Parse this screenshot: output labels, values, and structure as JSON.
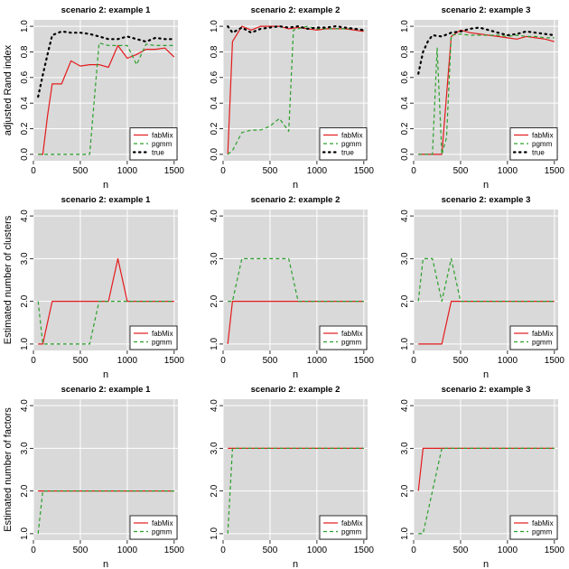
{
  "colors": {
    "fabMix": "#e41a1c",
    "pgmm": "#2ca02c",
    "true": "#000000",
    "panel_bg": "#d9d9d9",
    "grid": "#ffffff"
  },
  "chart_data": [
    {
      "id": "ari-1",
      "type": "line",
      "title": "scenario 2: example 1",
      "xlabel": "n",
      "ylabel": "adjusted Rand index",
      "xlim": [
        0,
        1540
      ],
      "ylim": [
        -0.05,
        1.05
      ],
      "xticks": [
        "0",
        "500",
        "1000",
        "1500"
      ],
      "yticks": [
        "0.0",
        "0.2",
        "0.4",
        "0.6",
        "0.8",
        "1.0"
      ],
      "legend": "bottom-right",
      "series": [
        {
          "name": "fabMix",
          "style": "solid",
          "x": [
            50,
            100,
            150,
            200,
            300,
            400,
            500,
            600,
            700,
            800,
            900,
            1000,
            1100,
            1200,
            1300,
            1400,
            1500
          ],
          "y": [
            0.0,
            0.0,
            0.3,
            0.55,
            0.55,
            0.73,
            0.69,
            0.7,
            0.7,
            0.68,
            0.85,
            0.75,
            0.78,
            0.82,
            0.82,
            0.83,
            0.76
          ]
        },
        {
          "name": "pgmm",
          "style": "dashed",
          "x": [
            50,
            100,
            200,
            300,
            400,
            500,
            600,
            700,
            800,
            900,
            1000,
            1100,
            1200,
            1300,
            1400,
            1500
          ],
          "y": [
            0.0,
            0.0,
            0.0,
            0.0,
            0.0,
            0.0,
            0.0,
            0.87,
            0.85,
            0.85,
            0.85,
            0.7,
            0.86,
            0.85,
            0.85,
            0.85
          ]
        },
        {
          "name": "true",
          "style": "dotted",
          "x": [
            50,
            100,
            150,
            200,
            300,
            400,
            500,
            600,
            700,
            800,
            900,
            1000,
            1100,
            1200,
            1300,
            1400,
            1500
          ],
          "y": [
            0.45,
            0.62,
            0.78,
            0.93,
            0.96,
            0.95,
            0.95,
            0.94,
            0.92,
            0.9,
            0.9,
            0.92,
            0.9,
            0.88,
            0.91,
            0.9,
            0.9
          ]
        }
      ]
    },
    {
      "id": "ari-2",
      "type": "line",
      "title": "scenario 2: example 2",
      "xlabel": "n",
      "ylabel": "",
      "xlim": [
        0,
        1540
      ],
      "ylim": [
        -0.05,
        1.05
      ],
      "xticks": [
        "0",
        "500",
        "1000",
        "1500"
      ],
      "yticks": [
        "0.0",
        "0.2",
        "0.4",
        "0.6",
        "0.8",
        "1.0"
      ],
      "legend": "bottom-right",
      "series": [
        {
          "name": "fabMix",
          "style": "solid",
          "x": [
            50,
            100,
            200,
            300,
            400,
            500,
            600,
            700,
            800,
            900,
            1000,
            1100,
            1200,
            1300,
            1400,
            1500
          ],
          "y": [
            0.0,
            0.88,
            1.0,
            0.97,
            1.0,
            1.0,
            1.0,
            0.98,
            0.99,
            0.98,
            0.97,
            0.98,
            0.98,
            0.98,
            0.97,
            0.96
          ]
        },
        {
          "name": "pgmm",
          "style": "dashed",
          "x": [
            50,
            100,
            200,
            300,
            400,
            500,
            600,
            700,
            750,
            800,
            900,
            1000,
            1100,
            1200,
            1300,
            1400,
            1500
          ],
          "y": [
            0.0,
            0.03,
            0.17,
            0.19,
            0.19,
            0.22,
            0.28,
            0.18,
            0.97,
            0.98,
            1.0,
            0.98,
            0.98,
            0.98,
            0.98,
            0.98,
            0.97
          ]
        },
        {
          "name": "true",
          "style": "dotted",
          "x": [
            50,
            100,
            200,
            300,
            400,
            500,
            600,
            700,
            800,
            900,
            1000,
            1100,
            1200,
            1300,
            1400,
            1500
          ],
          "y": [
            1.0,
            0.95,
            0.99,
            0.95,
            0.98,
            0.99,
            1.0,
            0.99,
            1.0,
            0.98,
            0.99,
            0.99,
            1.0,
            0.99,
            0.98,
            0.97
          ]
        }
      ]
    },
    {
      "id": "ari-3",
      "type": "line",
      "title": "scenario 2: example 3",
      "xlabel": "n",
      "ylabel": "",
      "xlim": [
        0,
        1540
      ],
      "ylim": [
        -0.05,
        1.05
      ],
      "xticks": [
        "0",
        "500",
        "1000",
        "1500"
      ],
      "yticks": [
        "0.0",
        "0.2",
        "0.4",
        "0.6",
        "0.8",
        "1.0"
      ],
      "legend": "bottom-right",
      "series": [
        {
          "name": "fabMix",
          "style": "solid",
          "x": [
            50,
            100,
            200,
            300,
            400,
            500,
            600,
            700,
            800,
            900,
            1000,
            1100,
            1200,
            1300,
            1400,
            1500
          ],
          "y": [
            0.0,
            0.0,
            0.0,
            0.0,
            0.92,
            0.97,
            0.95,
            0.94,
            0.93,
            0.92,
            0.91,
            0.9,
            0.92,
            0.91,
            0.9,
            0.88
          ]
        },
        {
          "name": "pgmm",
          "style": "dashed",
          "x": [
            50,
            100,
            200,
            250,
            300,
            350,
            400,
            500,
            600,
            700,
            800,
            900,
            1000,
            1100,
            1200,
            1300,
            1400,
            1500
          ],
          "y": [
            0.0,
            0.0,
            0.0,
            0.83,
            0.0,
            0.13,
            0.93,
            0.94,
            0.93,
            0.93,
            0.93,
            0.93,
            0.92,
            0.93,
            0.92,
            0.92,
            0.91,
            0.91
          ]
        },
        {
          "name": "true",
          "style": "dotted",
          "x": [
            50,
            100,
            150,
            200,
            300,
            400,
            500,
            600,
            700,
            800,
            900,
            1000,
            1100,
            1200,
            1300,
            1400,
            1500
          ],
          "y": [
            0.63,
            0.8,
            0.88,
            0.93,
            0.92,
            0.95,
            0.96,
            0.98,
            0.99,
            0.97,
            0.95,
            0.93,
            0.94,
            0.96,
            0.95,
            0.94,
            0.93
          ]
        }
      ]
    },
    {
      "id": "clusters-1",
      "type": "line",
      "title": "scenario 2: example 1",
      "xlabel": "n",
      "ylabel": "Estimated number of clusters",
      "xlim": [
        0,
        1540
      ],
      "ylim": [
        0.85,
        4.15
      ],
      "xticks": [
        "0",
        "500",
        "1000",
        "1500"
      ],
      "yticks": [
        "1.0",
        "2.0",
        "3.0",
        "4.0"
      ],
      "legend": "bottom-right",
      "series": [
        {
          "name": "fabMix",
          "style": "solid",
          "x": [
            50,
            100,
            200,
            300,
            400,
            500,
            600,
            700,
            800,
            900,
            1000,
            1100,
            1200,
            1300,
            1400,
            1500
          ],
          "y": [
            1,
            1,
            2,
            2,
            2,
            2,
            2,
            2,
            2,
            3,
            2,
            2,
            2,
            2,
            2,
            2
          ]
        },
        {
          "name": "pgmm",
          "style": "dashed",
          "x": [
            50,
            100,
            200,
            300,
            400,
            500,
            600,
            700,
            800,
            900,
            1000,
            1100,
            1200,
            1300,
            1400,
            1500
          ],
          "y": [
            2,
            1,
            1,
            1,
            1,
            1,
            1,
            2,
            2,
            2,
            2,
            2,
            2,
            2,
            2,
            2
          ]
        }
      ]
    },
    {
      "id": "clusters-2",
      "type": "line",
      "title": "scenario 2: example 2",
      "xlabel": "n",
      "ylabel": "",
      "xlim": [
        0,
        1540
      ],
      "ylim": [
        0.85,
        4.15
      ],
      "xticks": [
        "0",
        "500",
        "1000",
        "1500"
      ],
      "yticks": [
        "1.0",
        "2.0",
        "3.0",
        "4.0"
      ],
      "legend": "bottom-right",
      "series": [
        {
          "name": "fabMix",
          "style": "solid",
          "x": [
            50,
            100,
            200,
            300,
            400,
            500,
            600,
            700,
            800,
            900,
            1000,
            1100,
            1200,
            1300,
            1400,
            1500
          ],
          "y": [
            1,
            2,
            2,
            2,
            2,
            2,
            2,
            2,
            2,
            2,
            2,
            2,
            2,
            2,
            2,
            2
          ]
        },
        {
          "name": "pgmm",
          "style": "dashed",
          "x": [
            50,
            100,
            200,
            300,
            400,
            500,
            600,
            700,
            800,
            900,
            1000,
            1100,
            1200,
            1300,
            1400,
            1500
          ],
          "y": [
            2,
            2,
            3,
            3,
            3,
            3,
            3,
            3,
            2,
            2,
            2,
            2,
            2,
            2,
            2,
            2
          ]
        }
      ]
    },
    {
      "id": "clusters-3",
      "type": "line",
      "title": "scenario 2: example 3",
      "xlabel": "n",
      "ylabel": "",
      "xlim": [
        0,
        1540
      ],
      "ylim": [
        0.85,
        4.15
      ],
      "xticks": [
        "0",
        "500",
        "1000",
        "1500"
      ],
      "yticks": [
        "1.0",
        "2.0",
        "3.0",
        "4.0"
      ],
      "legend": "bottom-right",
      "series": [
        {
          "name": "fabMix",
          "style": "solid",
          "x": [
            50,
            100,
            200,
            300,
            400,
            500,
            600,
            700,
            800,
            900,
            1000,
            1100,
            1200,
            1300,
            1400,
            1500
          ],
          "y": [
            1,
            1,
            1,
            1,
            2,
            2,
            2,
            2,
            2,
            2,
            2,
            2,
            2,
            2,
            2,
            2
          ]
        },
        {
          "name": "pgmm",
          "style": "dashed",
          "x": [
            50,
            100,
            200,
            300,
            400,
            500,
            600,
            700,
            800,
            900,
            1000,
            1100,
            1200,
            1300,
            1400,
            1500
          ],
          "y": [
            2,
            3,
            3,
            2,
            3,
            2,
            2,
            2,
            2,
            2,
            2,
            2,
            2,
            2,
            2,
            2
          ]
        }
      ]
    },
    {
      "id": "factors-1",
      "type": "line",
      "title": "scenario 2: example 1",
      "xlabel": "n",
      "ylabel": "Estimated number of factors",
      "xlim": [
        0,
        1540
      ],
      "ylim": [
        0.85,
        4.15
      ],
      "xticks": [
        "0",
        "500",
        "1000",
        "1500"
      ],
      "yticks": [
        "1.0",
        "2.0",
        "3.0",
        "4.0"
      ],
      "legend": "bottom-right",
      "series": [
        {
          "name": "fabMix",
          "style": "solid",
          "x": [
            50,
            100,
            200,
            300,
            400,
            500,
            600,
            700,
            800,
            900,
            1000,
            1100,
            1200,
            1300,
            1400,
            1500
          ],
          "y": [
            2,
            2,
            2,
            2,
            2,
            2,
            2,
            2,
            2,
            2,
            2,
            2,
            2,
            2,
            2,
            2
          ]
        },
        {
          "name": "pgmm",
          "style": "dashed",
          "x": [
            50,
            100,
            200,
            300,
            400,
            500,
            600,
            700,
            800,
            900,
            1000,
            1100,
            1200,
            1300,
            1400,
            1500
          ],
          "y": [
            1,
            2,
            2,
            2,
            2,
            2,
            2,
            2,
            2,
            2,
            2,
            2,
            2,
            2,
            2,
            2
          ]
        }
      ]
    },
    {
      "id": "factors-2",
      "type": "line",
      "title": "scenario 2: example 2",
      "xlabel": "n",
      "ylabel": "",
      "xlim": [
        0,
        1540
      ],
      "ylim": [
        0.85,
        4.15
      ],
      "xticks": [
        "0",
        "500",
        "1000",
        "1500"
      ],
      "yticks": [
        "1.0",
        "2.0",
        "3.0",
        "4.0"
      ],
      "legend": "bottom-right",
      "series": [
        {
          "name": "fabMix",
          "style": "solid",
          "x": [
            50,
            100,
            200,
            300,
            400,
            500,
            600,
            700,
            800,
            900,
            1000,
            1100,
            1200,
            1300,
            1400,
            1500
          ],
          "y": [
            3,
            3,
            3,
            3,
            3,
            3,
            3,
            3,
            3,
            3,
            3,
            3,
            3,
            3,
            3,
            3
          ]
        },
        {
          "name": "pgmm",
          "style": "dashed",
          "x": [
            50,
            100,
            200,
            300,
            400,
            500,
            600,
            700,
            800,
            900,
            1000,
            1100,
            1200,
            1300,
            1400,
            1500
          ],
          "y": [
            1,
            3,
            3,
            3,
            3,
            3,
            3,
            3,
            3,
            3,
            3,
            3,
            3,
            3,
            3,
            3
          ]
        }
      ]
    },
    {
      "id": "factors-3",
      "type": "line",
      "title": "scenario 2: example 3",
      "xlabel": "n",
      "ylabel": "",
      "xlim": [
        0,
        1540
      ],
      "ylim": [
        0.85,
        4.15
      ],
      "xticks": [
        "0",
        "500",
        "1000",
        "1500"
      ],
      "yticks": [
        "1.0",
        "2.0",
        "3.0",
        "4.0"
      ],
      "legend": "bottom-right",
      "series": [
        {
          "name": "fabMix",
          "style": "solid",
          "x": [
            50,
            100,
            200,
            300,
            400,
            500,
            600,
            700,
            800,
            900,
            1000,
            1100,
            1200,
            1300,
            1400,
            1500
          ],
          "y": [
            2,
            3,
            3,
            3,
            3,
            3,
            3,
            3,
            3,
            3,
            3,
            3,
            3,
            3,
            3,
            3
          ]
        },
        {
          "name": "pgmm",
          "style": "dashed",
          "x": [
            50,
            100,
            200,
            300,
            400,
            500,
            600,
            700,
            800,
            900,
            1000,
            1100,
            1200,
            1300,
            1400,
            1500
          ],
          "y": [
            1,
            1,
            2,
            3,
            3,
            3,
            3,
            3,
            3,
            3,
            3,
            3,
            3,
            3,
            3,
            3
          ]
        }
      ]
    }
  ]
}
